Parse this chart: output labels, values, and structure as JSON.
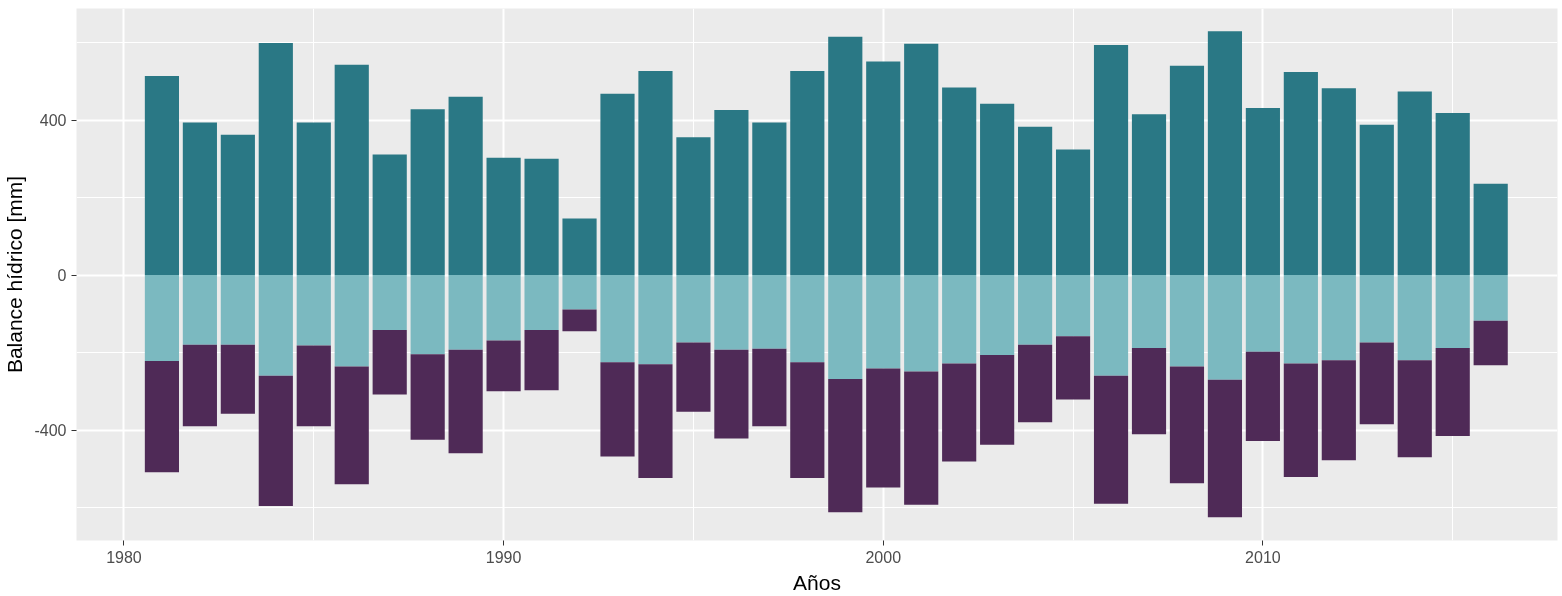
{
  "chart_data": {
    "type": "bar",
    "stacked": true,
    "xlabel": "Años",
    "ylabel": "Balance hídrico [mm]",
    "x": [
      1981,
      1982,
      1983,
      1984,
      1985,
      1986,
      1987,
      1988,
      1989,
      1990,
      1991,
      1992,
      1993,
      1994,
      1995,
      1996,
      1997,
      1998,
      1999,
      2000,
      2001,
      2002,
      2003,
      2004,
      2005,
      2006,
      2007,
      2008,
      2009,
      2010,
      2011,
      2012,
      2013,
      2014,
      2015,
      2016
    ],
    "series": [
      {
        "color": "#2a7885",
        "values": [
          514,
          394,
          362,
          599,
          394,
          543,
          311,
          428,
          460,
          303,
          300,
          146,
          468,
          527,
          356,
          426,
          394,
          527,
          615,
          551,
          597,
          484,
          442,
          383,
          324,
          594,
          415,
          540,
          629,
          431,
          524,
          482,
          388,
          474,
          418,
          236
        ]
      },
      {
        "color": "#7bb9c0",
        "values": [
          -222,
          -180,
          -180,
          -260,
          -182,
          -236,
          -142,
          -204,
          -193,
          -169,
          -142,
          -89,
          -225,
          -230,
          -174,
          -193,
          -190,
          -225,
          -268,
          -241,
          -249,
          -228,
          -206,
          -180,
          -158,
          -260,
          -188,
          -236,
          -270,
          -198,
          -228,
          -220,
          -174,
          -220,
          -188,
          -118
        ]
      },
      {
        "color": "#4f2a57",
        "values": [
          -287,
          -210,
          -178,
          -336,
          -208,
          -304,
          -166,
          -221,
          -267,
          -131,
          -155,
          -56,
          -243,
          -294,
          -179,
          -229,
          -200,
          -299,
          -344,
          -307,
          -344,
          -253,
          -232,
          -200,
          -163,
          -330,
          -223,
          -301,
          -355,
          -230,
          -293,
          -258,
          -211,
          -250,
          -227,
          -115
        ]
      }
    ],
    "xlim": [
      1978.75,
      2017.76
    ],
    "xticks": [
      1980,
      1990,
      2000,
      2010
    ],
    "ylim": [
      -685,
      688
    ],
    "yticks": [
      -400,
      0,
      400
    ],
    "grid": true
  }
}
